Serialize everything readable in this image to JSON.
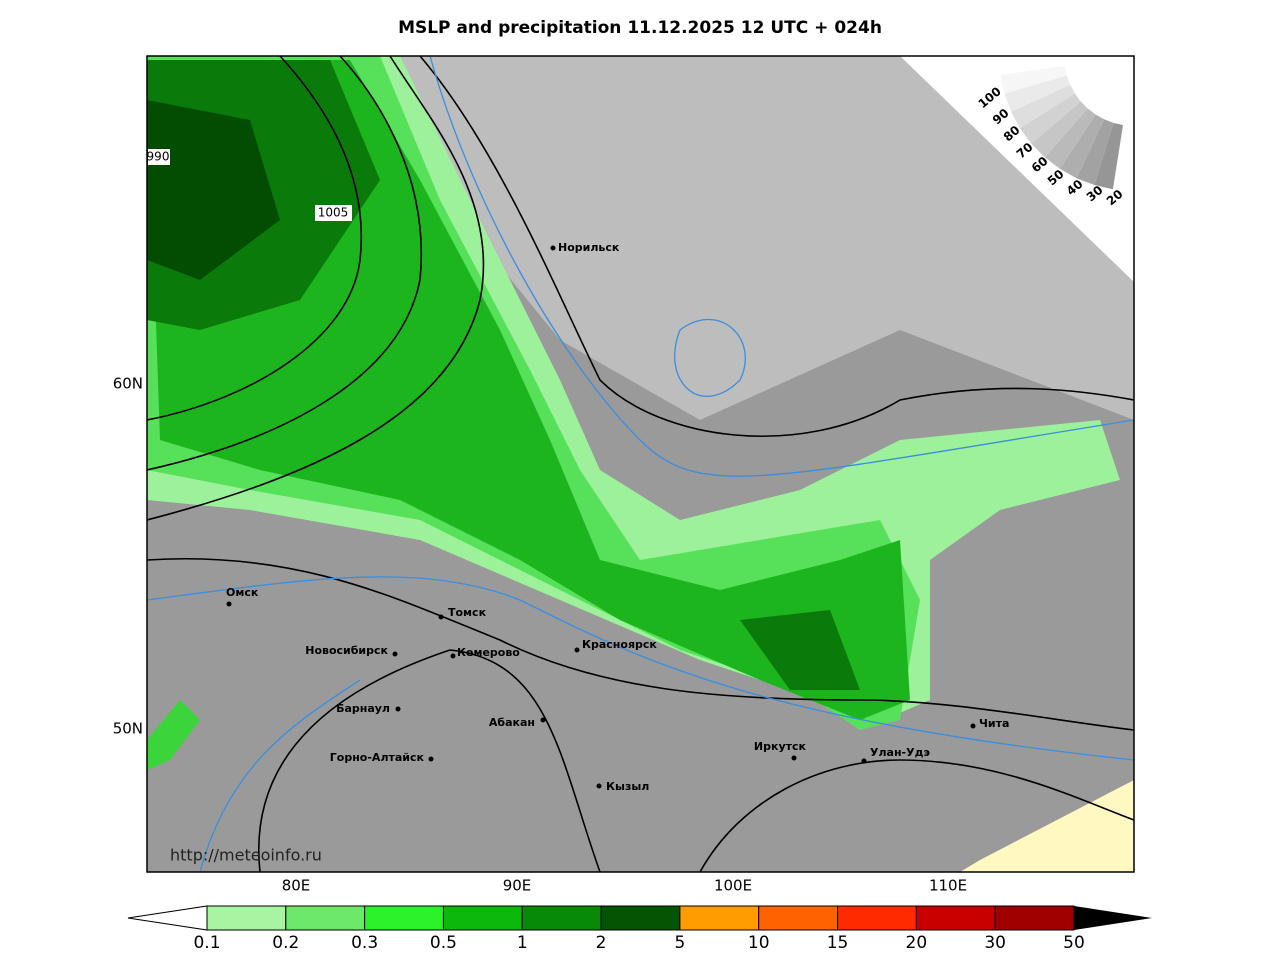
{
  "title": "MSLP and precipitation 11.12.2025 12 UTC + 024h",
  "map": {
    "lon_labels": [
      "80E",
      "90E",
      "100E",
      "110E"
    ],
    "lat_labels": [
      "60N",
      "50N"
    ],
    "cities": [
      "Норильск",
      "Омск",
      "Томск",
      "Новосибирск",
      "Кемерово",
      "Красноярск",
      "Барнаул",
      "Абакан",
      "Горно-Алтайск",
      "Кызыл",
      "Иркутск",
      "Улан-Удэ",
      "Чита"
    ],
    "isobar_labels": [
      "1005",
      "990"
    ],
    "credit": "http://meteoinfo.ru"
  },
  "cloud_scale": {
    "labels": [
      "100",
      "90",
      "80",
      "70",
      "60",
      "50",
      "40",
      "30",
      "20"
    ]
  },
  "precip_legend": {
    "labels": [
      "0.1",
      "0.2",
      "0.3",
      "0.5",
      "1",
      "2",
      "5",
      "10",
      "15",
      "20",
      "30",
      "50"
    ]
  }
}
